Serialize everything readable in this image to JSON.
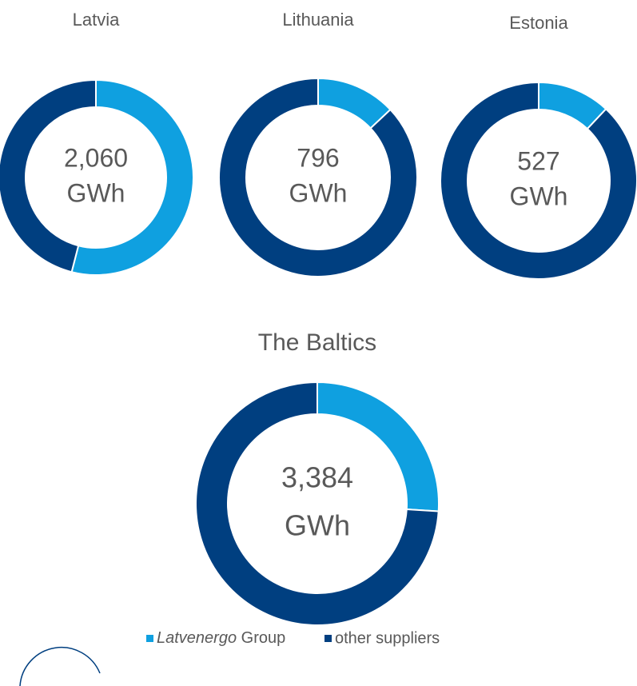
{
  "chart_data": [
    {
      "type": "donut",
      "title": "Latvia",
      "center_text": [
        "2,060",
        "GWh"
      ],
      "values": [
        54,
        46
      ]
    },
    {
      "type": "donut",
      "title": "Lithuania",
      "center_text": [
        "796",
        "GWh"
      ],
      "values": [
        13,
        87
      ]
    },
    {
      "type": "donut",
      "title": "Estonia",
      "center_text": [
        "527",
        "GWh"
      ],
      "values": [
        12,
        88
      ]
    },
    {
      "type": "donut",
      "title": "The Baltics",
      "center_text": [
        "3,384",
        "GWh"
      ],
      "values": [
        26,
        74
      ]
    }
  ],
  "legend": {
    "labels": [
      "Latvenergo Group",
      "other suppliers"
    ],
    "colors": [
      "#0fa0e0",
      "#003f80"
    ]
  }
}
